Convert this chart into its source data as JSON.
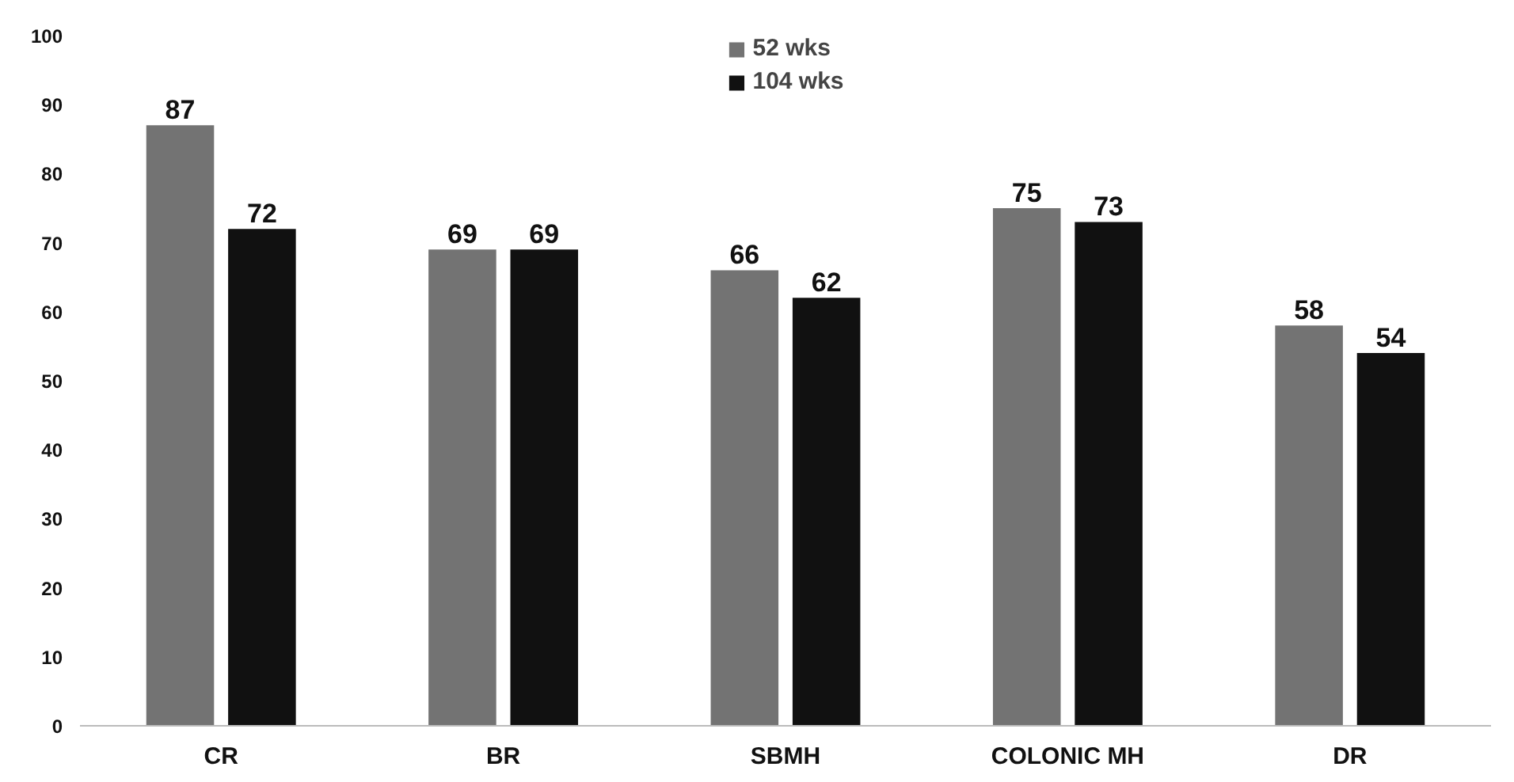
{
  "chart_data": {
    "type": "bar",
    "categories": [
      "CR",
      "BR",
      "SBMH",
      "COLONIC MH",
      "DR"
    ],
    "series": [
      {
        "name": "52 wks",
        "color": "#737373",
        "values": [
          87,
          69,
          66,
          75,
          58
        ]
      },
      {
        "name": "104 wks",
        "color": "#111111",
        "values": [
          72,
          69,
          62,
          73,
          54
        ]
      }
    ],
    "ylim": [
      0,
      100
    ],
    "yticks": [
      0,
      10,
      20,
      30,
      40,
      50,
      60,
      70,
      80,
      90,
      100
    ],
    "grid": false,
    "legend": "top",
    "data_labels": true
  }
}
